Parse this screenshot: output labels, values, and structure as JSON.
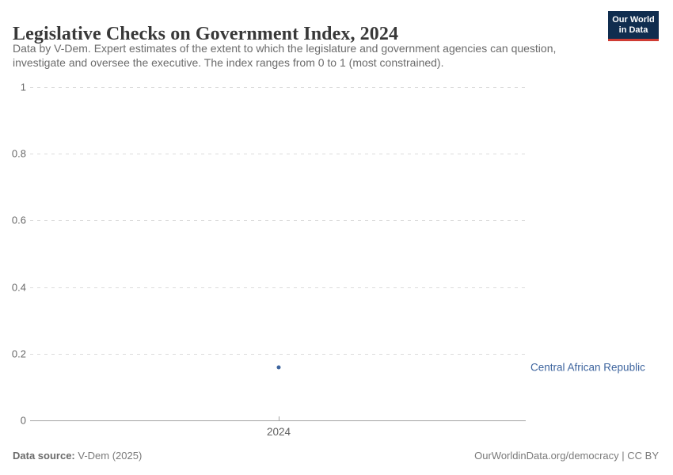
{
  "header": {
    "title": "Legislative Checks on Government Index, 2024",
    "subtitle_lines": [
      "Data by V-Dem. Expert estimates of the extent to which the legislature and government agencies can question,",
      "investigate and oversee the executive. The index ranges from 0 to 1 (most constrained)."
    ]
  },
  "logo": {
    "line1": "Our World",
    "line2": "in Data",
    "bg_color": "#102d4f",
    "stripe_color": "#cf3b33"
  },
  "chart_data": {
    "type": "scatter",
    "title": "Legislative Checks on Government Index, 2024",
    "x": [
      2024
    ],
    "x_tick_labels": [
      "2024"
    ],
    "series": [
      {
        "name": "Central African Republic",
        "values": [
          0.16
        ],
        "color": "#3d649e"
      }
    ],
    "xlabel": "",
    "ylabel": "",
    "ylim": [
      0,
      1
    ],
    "y_ticks": [
      0,
      0.2,
      0.4,
      0.6,
      0.8,
      1
    ],
    "y_tick_labels": [
      "0",
      "0.2",
      "0.4",
      "0.6",
      "0.8",
      "1"
    ],
    "grid": "horizontal-dashed",
    "legend_position": "right-of-point"
  },
  "footer": {
    "source_label": "Data source:",
    "source_value": "V-Dem (2025)",
    "credit": "OurWorldinData.org/democracy | CC BY"
  },
  "colors": {
    "accent_series": "#3d649e",
    "gridline": "#dcdcdc",
    "axis": "#a3a3a3",
    "title_text": "#383838",
    "subtitle_text": "#6b6b6b",
    "logo_bg": "#102d4f",
    "logo_stripe": "#cf3b33"
  }
}
